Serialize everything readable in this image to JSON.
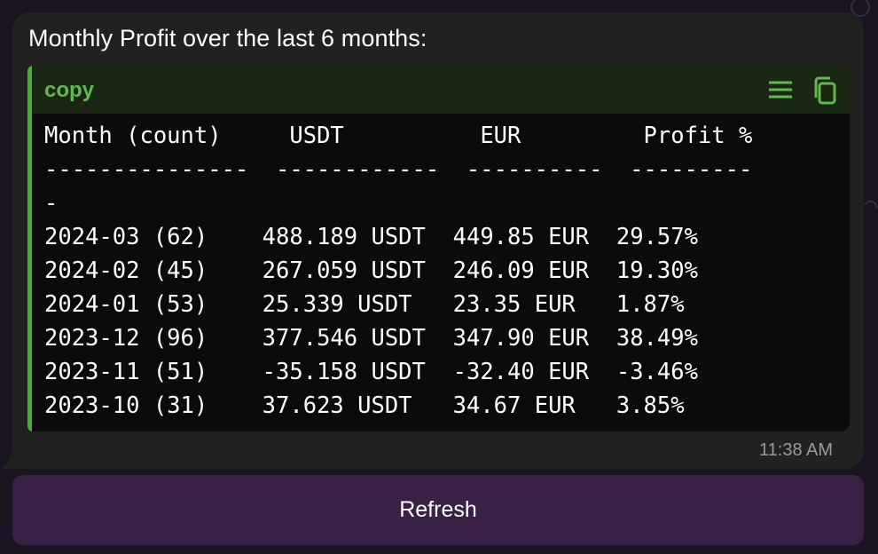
{
  "message": {
    "title": "Monthly Profit over the last 6 months:",
    "time": "11:38 AM"
  },
  "code_block": {
    "language_label": "copy",
    "wrap_icon": "wrap-lines-icon",
    "copy_icon": "copy-icon",
    "header_color": "#1a2813",
    "accent_color": "#4aad39",
    "columns": [
      "Month (count)",
      "USDT",
      "EUR",
      "Profit %"
    ],
    "separator_line": "---------------  ------------  ----------  ---------",
    "separator_wrap": "-",
    "rows": [
      {
        "month": "2024-03 (62)",
        "usdt": "488.189 USDT",
        "eur": "449.85 EUR",
        "profit": "29.57%"
      },
      {
        "month": "2024-02 (45)",
        "usdt": "267.059 USDT",
        "eur": "246.09 EUR",
        "profit": "19.30%"
      },
      {
        "month": "2024-01 (53)",
        "usdt": "25.339 USDT",
        "eur": "23.35 EUR",
        "profit": "1.87%"
      },
      {
        "month": "2023-12 (96)",
        "usdt": "377.546 USDT",
        "eur": "347.90 EUR",
        "profit": "38.49%"
      },
      {
        "month": "2023-11 (51)",
        "usdt": "-35.158 USDT",
        "eur": "-32.40 EUR",
        "profit": "-3.46%"
      },
      {
        "month": "2023-10 (31)",
        "usdt": "37.623 USDT",
        "eur": "34.67 EUR",
        "profit": "3.85%"
      }
    ]
  },
  "keyboard": {
    "refresh_label": "Refresh"
  }
}
